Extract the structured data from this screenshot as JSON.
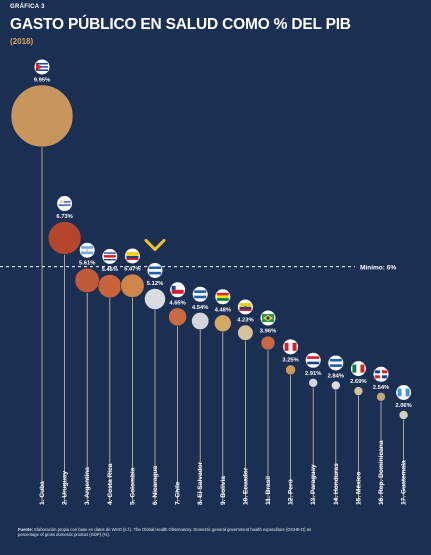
{
  "header": {
    "kicker": "GRÁFICA 3",
    "title": "GASTO PÚBLICO EN SALUD COMO % DEL PIB",
    "year": "(2018)"
  },
  "source": {
    "label": "Fuente:",
    "text": "Elaboración propia con base en datos de WHO (s.f.). The Global Health Observatory. Domestic general government health expenditure (GGHE-D) as percentage of gross domestic product (GDP) (%)."
  },
  "chart_data": {
    "type": "bubble",
    "title": "GASTO PÚBLICO EN SALUD COMO % DEL PIB",
    "subtitle": "(2018)",
    "xlabel": "",
    "ylabel": "",
    "unit": "%",
    "categories": [
      "1. Cuba",
      "2. Uruguay",
      "3. Argentina",
      "4. Costa Rica",
      "5. Colombia",
      "6. Nicaragua",
      "7. Chile",
      "8. El Salvador",
      "9. Bolivia",
      "10. Ecuador",
      "11. Brasil",
      "12. Perú",
      "13. Paraguay",
      "14. Honduras",
      "15. México",
      "16. Rep. Dominicana",
      "17. Guatemala"
    ],
    "values": [
      9.95,
      6.73,
      5.61,
      5.46,
      5.47,
      5.12,
      4.65,
      4.54,
      4.48,
      4.23,
      3.96,
      3.25,
      2.91,
      2.84,
      2.69,
      2.54,
      2.06
    ],
    "value_labels": [
      "9.95%",
      "6.73%",
      "5.61%",
      "5.46%",
      "5.47%",
      "5.12%",
      "4.65%",
      "4.54%",
      "4.48%",
      "4.23%",
      "3.96%",
      "3.25%",
      "2.91%",
      "2.84%",
      "2.69%",
      "2.54%",
      "2.06%"
    ],
    "flags": [
      "flag-cuba-icon",
      "flag-uruguay-icon",
      "flag-argentina-icon",
      "flag-costa-rica-icon",
      "flag-colombia-icon",
      "flag-nicaragua-icon",
      "flag-chile-icon",
      "flag-el-salvador-icon",
      "flag-bolivia-icon",
      "flag-ecuador-icon",
      "flag-brasil-icon",
      "flag-peru-icon",
      "flag-paraguay-icon",
      "flag-honduras-icon",
      "flag-mexico-icon",
      "flag-rep-dominicana-icon",
      "flag-guatemala-icon"
    ],
    "colors": [
      "#c8965a",
      "#b5452d",
      "#c05a3a",
      "#c9633e",
      "#d08548",
      "#d9dde3",
      "#c96b42",
      "#d3d7dd",
      "#d3a865",
      "#d6c29a",
      "#c96840",
      "#c89a55",
      "#d3d7dd",
      "#d9dde3",
      "#d6c29a",
      "#c8a675",
      "#d3d1c0"
    ],
    "threshold": {
      "value": 6,
      "label": "Mínimo: 6%"
    },
    "highlight": "6. Nicaragua",
    "highlight_icon": "arrow-down-icon",
    "grid": false,
    "legend": "none"
  }
}
